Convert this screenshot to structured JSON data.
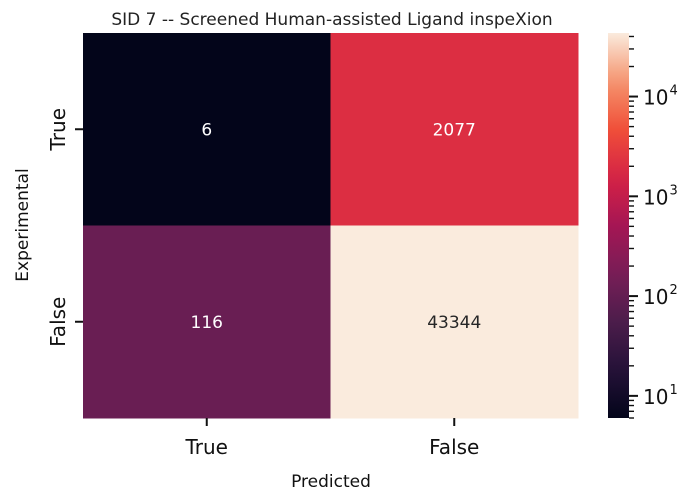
{
  "chart_data": {
    "type": "heatmap",
    "title": "SID 7 -- Screened Human-assisted Ligand inspeXion",
    "xlabel": "Predicted",
    "ylabel": "Experimental",
    "x_categories": [
      "True",
      "False"
    ],
    "y_categories": [
      "True",
      "False"
    ],
    "values": [
      [
        6,
        2077
      ],
      [
        116,
        43344
      ]
    ],
    "color_scale": "log",
    "colormap": "rocket",
    "colorbar": {
      "range": [
        6,
        43344
      ],
      "ticks": [
        {
          "base": "10",
          "exp": "1",
          "value": 10
        },
        {
          "base": "10",
          "exp": "2",
          "value": 100
        },
        {
          "base": "10",
          "exp": "3",
          "value": 1000
        },
        {
          "base": "10",
          "exp": "4",
          "value": 10000
        }
      ]
    }
  }
}
